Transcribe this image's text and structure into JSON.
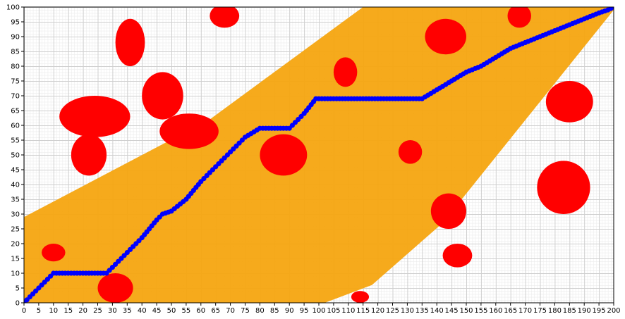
{
  "chart_data": {
    "type": "scatter",
    "title": "",
    "xlabel": "",
    "ylabel": "",
    "xlim": [
      0,
      200
    ],
    "ylim": [
      0,
      100
    ],
    "grid": true,
    "x_ticks": [
      "0",
      "5",
      "10",
      "15",
      "20",
      "25",
      "30",
      "35",
      "40",
      "45",
      "50",
      "55",
      "60",
      "65",
      "70",
      "75",
      "80",
      "85",
      "90",
      "95",
      "100",
      "105",
      "110",
      "115",
      "120",
      "125",
      "130",
      "135",
      "140",
      "145",
      "150",
      "155",
      "160",
      "165",
      "170",
      "175",
      "180",
      "185",
      "190",
      "195",
      "200"
    ],
    "y_ticks": [
      "0",
      "5",
      "10",
      "15",
      "20",
      "25",
      "30",
      "35",
      "40",
      "45",
      "50",
      "55",
      "60",
      "65",
      "70",
      "75",
      "80",
      "85",
      "90",
      "95",
      "100"
    ],
    "colors": {
      "search_region": "#f5a510",
      "obstacles": "#ff0000",
      "path": "#0000ff",
      "grid_major": "#cfcfcf",
      "grid_minor": "#ececec"
    },
    "search_region": {
      "polygon": [
        [
          0,
          29
        ],
        [
          63,
          62
        ],
        [
          115,
          100
        ],
        [
          200,
          100
        ],
        [
          200,
          99
        ],
        [
          142,
          27
        ],
        [
          118,
          6
        ],
        [
          102,
          0
        ],
        [
          35,
          0
        ],
        [
          0,
          0
        ]
      ]
    },
    "obstacles": [
      {
        "cx": 36,
        "cy": 88,
        "rx": 5,
        "ry": 8
      },
      {
        "cx": 24,
        "cy": 63,
        "rx": 12,
        "ry": 7
      },
      {
        "cx": 22,
        "cy": 50,
        "rx": 6,
        "ry": 7
      },
      {
        "cx": 47,
        "cy": 70,
        "rx": 7,
        "ry": 8
      },
      {
        "cx": 56,
        "cy": 58,
        "rx": 10,
        "ry": 6
      },
      {
        "cx": 68,
        "cy": 97,
        "rx": 5,
        "ry": 4
      },
      {
        "cx": 88,
        "cy": 50,
        "rx": 8,
        "ry": 7
      },
      {
        "cx": 109,
        "cy": 78,
        "rx": 4,
        "ry": 5
      },
      {
        "cx": 131,
        "cy": 51,
        "rx": 4,
        "ry": 4
      },
      {
        "cx": 143,
        "cy": 90,
        "rx": 7,
        "ry": 6
      },
      {
        "cx": 168,
        "cy": 97,
        "rx": 4,
        "ry": 4
      },
      {
        "cx": 185,
        "cy": 68,
        "rx": 8,
        "ry": 7
      },
      {
        "cx": 183,
        "cy": 39,
        "rx": 9,
        "ry": 9
      },
      {
        "cx": 144,
        "cy": 31,
        "rx": 6,
        "ry": 6
      },
      {
        "cx": 147,
        "cy": 16,
        "rx": 5,
        "ry": 4
      },
      {
        "cx": 31,
        "cy": 5,
        "rx": 6,
        "ry": 5
      },
      {
        "cx": 10,
        "cy": 17,
        "rx": 4,
        "ry": 3
      },
      {
        "cx": 114,
        "cy": 2,
        "rx": 3,
        "ry": 2
      }
    ],
    "path": {
      "x": [
        0,
        10,
        28,
        35,
        40,
        45,
        47,
        50,
        55,
        60,
        65,
        70,
        75,
        80,
        90,
        95,
        99,
        135,
        140,
        145,
        150,
        155,
        160,
        165,
        170,
        175,
        180,
        185,
        190,
        195,
        198,
        200
      ],
      "y": [
        0,
        10,
        10,
        17,
        22,
        28,
        30,
        31,
        35,
        41,
        46,
        51,
        56,
        59,
        59,
        64,
        69,
        69,
        72,
        75,
        78,
        80,
        83,
        86,
        88,
        90,
        92,
        94,
        96,
        98,
        99,
        100
      ]
    }
  }
}
